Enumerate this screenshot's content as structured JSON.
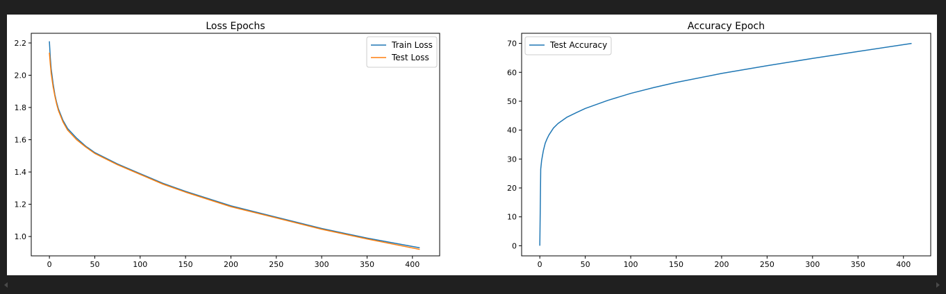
{
  "chart_data": [
    {
      "type": "line",
      "title": "Loss Epochs",
      "xlabel": "",
      "ylabel": "",
      "xlim": [
        -20,
        430
      ],
      "ylim": [
        0.88,
        2.26
      ],
      "xticks": [
        0,
        50,
        100,
        150,
        200,
        250,
        300,
        350,
        400
      ],
      "yticks": [
        1.0,
        1.2,
        1.4,
        1.6,
        1.8,
        2.0,
        2.2
      ],
      "ytick_labels": [
        "1.0",
        "1.2",
        "1.4",
        "1.6",
        "1.8",
        "2.0",
        "2.2"
      ],
      "grid": false,
      "legend_position": "top-right",
      "series": [
        {
          "name": "Train Loss",
          "color": "#1f77b4",
          "x": [
            0,
            1,
            2,
            4,
            6,
            8,
            10,
            15,
            20,
            30,
            40,
            50,
            75,
            100,
            125,
            150,
            200,
            250,
            300,
            350,
            408
          ],
          "y": [
            2.21,
            2.11,
            2.04,
            1.95,
            1.88,
            1.83,
            1.79,
            1.72,
            1.67,
            1.61,
            1.56,
            1.52,
            1.45,
            1.39,
            1.33,
            1.28,
            1.19,
            1.12,
            1.05,
            0.99,
            0.93
          ]
        },
        {
          "name": "Test Loss",
          "color": "#ff7f0e",
          "x": [
            0,
            1,
            2,
            4,
            6,
            8,
            10,
            15,
            20,
            30,
            40,
            50,
            75,
            100,
            125,
            150,
            200,
            250,
            300,
            350,
            408
          ],
          "y": [
            2.14,
            2.07,
            2.01,
            1.93,
            1.87,
            1.82,
            1.78,
            1.71,
            1.66,
            1.6,
            1.555,
            1.515,
            1.445,
            1.385,
            1.325,
            1.275,
            1.185,
            1.115,
            1.045,
            0.985,
            0.92
          ]
        }
      ]
    },
    {
      "type": "line",
      "title": "Accuracy Epoch",
      "xlabel": "",
      "ylabel": "",
      "xlim": [
        -20,
        430
      ],
      "ylim": [
        -3.5,
        73.5
      ],
      "xticks": [
        0,
        50,
        100,
        150,
        200,
        250,
        300,
        350,
        400
      ],
      "yticks": [
        0,
        10,
        20,
        30,
        40,
        50,
        60,
        70
      ],
      "ytick_labels": [
        "0",
        "10",
        "20",
        "30",
        "40",
        "50",
        "60",
        "70"
      ],
      "grid": false,
      "legend_position": "top-left",
      "series": [
        {
          "name": "Test Accuracy",
          "color": "#1f77b4",
          "x": [
            0,
            1,
            2,
            4,
            6,
            8,
            10,
            15,
            20,
            30,
            40,
            50,
            75,
            100,
            125,
            150,
            200,
            250,
            300,
            350,
            409
          ],
          "y": [
            0,
            26.5,
            29.5,
            33,
            35.5,
            37,
            38.3,
            40.7,
            42.3,
            44.5,
            46,
            47.5,
            50.3,
            52.7,
            54.7,
            56.5,
            59.6,
            62.3,
            64.8,
            67.2,
            70
          ]
        }
      ]
    }
  ]
}
